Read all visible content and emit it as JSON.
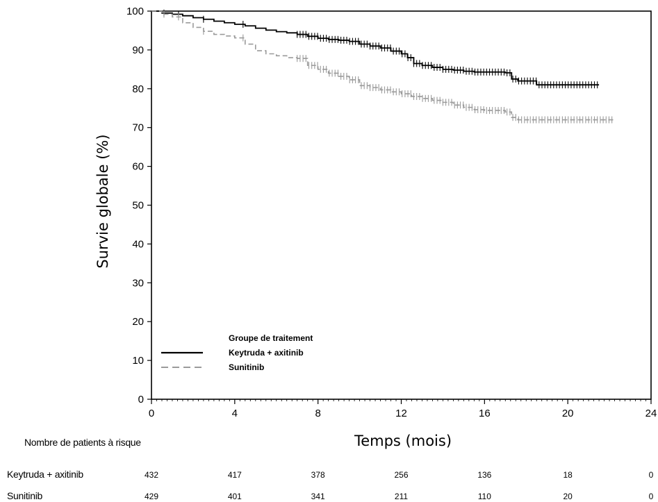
{
  "chart_data": {
    "type": "line",
    "title": "",
    "xlabel": "Temps (mois)",
    "ylabel": "Survie globale (%)",
    "xlim": [
      0,
      24
    ],
    "ylim": [
      0,
      100
    ],
    "x_ticks": [
      0,
      4,
      8,
      12,
      16,
      20,
      24
    ],
    "y_ticks": [
      0,
      10,
      20,
      30,
      40,
      50,
      60,
      70,
      80,
      90,
      100
    ],
    "grid": false,
    "legend": {
      "title": "Groupe de traitement",
      "placement": "bottom-left",
      "entries": [
        "Keytruda + axitinib",
        "Sunitinib"
      ]
    },
    "series": [
      {
        "name": "Keytruda + axitinib",
        "color": "#000000",
        "style": "solid",
        "x": [
          0,
          0.5,
          1,
          1.5,
          2,
          2.5,
          3,
          3.5,
          4,
          4.5,
          5,
          5.5,
          6,
          6.5,
          7,
          7.5,
          8,
          8.5,
          9,
          9.5,
          10,
          10.5,
          11,
          11.5,
          12,
          12.3,
          12.6,
          13,
          13.5,
          14,
          14.5,
          15,
          15.5,
          16,
          16.5,
          17,
          17.3,
          17.6,
          18,
          18.5,
          19,
          19.5,
          20,
          20.5,
          21,
          21.5
        ],
        "y": [
          100,
          99.5,
          99.2,
          98.8,
          98.3,
          97.9,
          97.4,
          97.0,
          96.6,
          96.2,
          95.6,
          95.1,
          94.7,
          94.4,
          94.0,
          93.5,
          93.0,
          92.7,
          92.5,
          92.2,
          91.5,
          91.0,
          90.5,
          89.7,
          89.0,
          88.0,
          86.5,
          86.0,
          85.5,
          85.0,
          84.8,
          84.5,
          84.3,
          84.3,
          84.3,
          84.1,
          82.5,
          82.0,
          82.0,
          81.0,
          81.0,
          81.0,
          81.0,
          81.0,
          81.0,
          81.0
        ]
      },
      {
        "name": "Sunitinib",
        "color": "#9a9a9a",
        "style": "dashed",
        "x": [
          0,
          0.5,
          1,
          1.5,
          2,
          2.5,
          3,
          3.5,
          4,
          4.5,
          5,
          5.5,
          6,
          6.5,
          7,
          7.5,
          8,
          8.5,
          9,
          9.5,
          10,
          10.5,
          11,
          11.5,
          12,
          12.5,
          13,
          13.5,
          14,
          14.5,
          15,
          15.5,
          16,
          16.5,
          17,
          17.3,
          17.6,
          18,
          18.5,
          19,
          19.5,
          20,
          20.5,
          21,
          21.5,
          22.2
        ],
        "y": [
          100,
          99.2,
          98.5,
          97.0,
          95.8,
          94.8,
          94.0,
          93.6,
          93.1,
          91.5,
          89.8,
          89.0,
          88.5,
          88.0,
          87.8,
          86.0,
          85.0,
          84.0,
          83.2,
          82.3,
          80.8,
          80.3,
          79.7,
          79.2,
          78.7,
          78.0,
          77.5,
          77.0,
          76.5,
          75.8,
          75.2,
          74.6,
          74.4,
          74.4,
          74.0,
          72.6,
          72.0,
          72.0,
          72.0,
          72.0,
          72.0,
          72.0,
          72.0,
          72.0,
          72.0,
          72.0
        ]
      }
    ]
  },
  "risk_table": {
    "title": "Nombre de patients à risque",
    "times": [
      0,
      4,
      8,
      12,
      16,
      20,
      24
    ],
    "rows": [
      {
        "label": "Keytruda + axitinib",
        "values": [
          "432",
          "417",
          "378",
          "256",
          "136",
          "18",
          "0"
        ]
      },
      {
        "label": "Sunitinib",
        "values": [
          "429",
          "401",
          "341",
          "211",
          "110",
          "20",
          "0"
        ]
      }
    ]
  }
}
